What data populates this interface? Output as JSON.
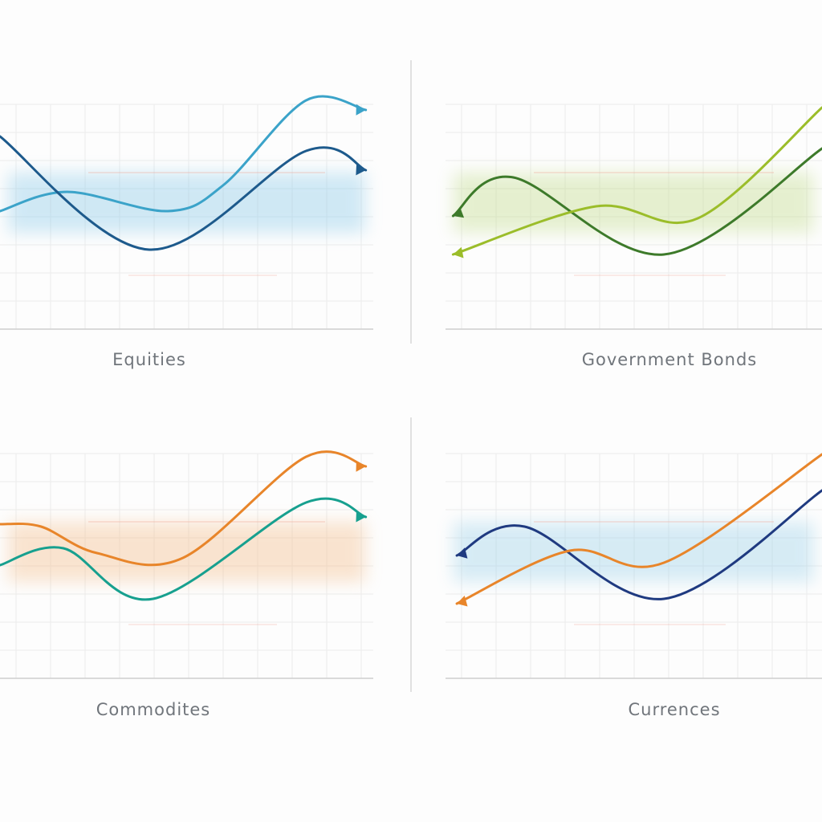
{
  "chart_data": [
    {
      "type": "line",
      "title": "Equities",
      "grid": true,
      "band_color": "#7cc3e6",
      "series": [
        {
          "color": "#3ba3c9",
          "x": [
            0,
            18,
            45,
            60,
            82,
            98
          ],
          "y": [
            49,
            57,
            49,
            60,
            95,
            91
          ],
          "arrow": "end"
        },
        {
          "color": "#1d5a8c",
          "x": [
            0,
            40,
            82,
            98
          ],
          "y": [
            80,
            33,
            74,
            66
          ],
          "arrow": "end"
        }
      ]
    },
    {
      "type": "line",
      "title": "Government Bonds",
      "grid": true,
      "band_color": "#b9d77c",
      "series": [
        {
          "color": "#3d7a2a",
          "x": [
            2,
            18,
            58,
            100
          ],
          "y": [
            47,
            63,
            31,
            75
          ],
          "arrow": "start"
        },
        {
          "color": "#9bbd2a",
          "x": [
            2,
            40,
            67,
            100
          ],
          "y": [
            31,
            51,
            46,
            92
          ],
          "arrow": "start"
        }
      ]
    },
    {
      "type": "line",
      "title": "Commodites",
      "grid": true,
      "band_color": "#f2b57c",
      "series": [
        {
          "color": "#e8852a",
          "x": [
            0,
            11,
            26,
            49,
            82,
            98
          ],
          "y": [
            64,
            63,
            52,
            50,
            92,
            88
          ],
          "arrow": "end"
        },
        {
          "color": "#17a08f",
          "x": [
            0,
            17,
            41,
            82,
            98
          ],
          "y": [
            47,
            54,
            33,
            73,
            67
          ],
          "arrow": "end"
        }
      ]
    },
    {
      "type": "line",
      "title": "Currences",
      "grid": true,
      "band_color": "#8fcbe6",
      "series": [
        {
          "color": "#1f3a80",
          "x": [
            3,
            21,
            58,
            100
          ],
          "y": [
            51,
            63,
            33,
            78
          ],
          "arrow": "start"
        },
        {
          "color": "#e8852a",
          "x": [
            3,
            33,
            58,
            100
          ],
          "y": [
            31,
            53,
            48,
            93
          ],
          "arrow": "start"
        }
      ]
    }
  ]
}
